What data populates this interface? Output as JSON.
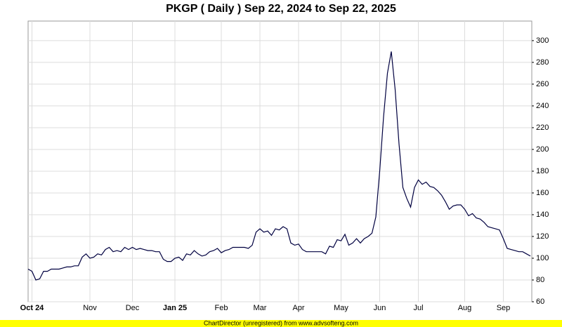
{
  "chart_data": {
    "type": "line",
    "title": "PKGP ( Daily ) Sep 22, 2024 to Sep 22, 2025",
    "footer": "ChartDirector (unregistered) from www.advsofteng.com",
    "categories": [
      null,
      "Oct 24",
      null,
      null,
      null,
      null,
      null,
      null,
      null,
      null,
      null,
      null,
      null,
      null,
      null,
      null,
      "Nov",
      null,
      null,
      null,
      null,
      null,
      null,
      null,
      null,
      null,
      null,
      "Dec",
      null,
      null,
      null,
      null,
      null,
      null,
      null,
      null,
      null,
      null,
      "Jan 25",
      null,
      null,
      null,
      null,
      null,
      null,
      null,
      null,
      null,
      null,
      null,
      "Feb",
      null,
      null,
      null,
      null,
      null,
      null,
      null,
      null,
      null,
      "Mar",
      null,
      null,
      null,
      null,
      null,
      null,
      null,
      null,
      null,
      "Apr",
      null,
      null,
      null,
      null,
      null,
      null,
      null,
      null,
      null,
      null,
      "May",
      null,
      null,
      null,
      null,
      null,
      null,
      null,
      null,
      null,
      "Jun",
      null,
      null,
      null,
      null,
      null,
      null,
      null,
      null,
      null,
      "Jul",
      null,
      null,
      null,
      null,
      null,
      null,
      null,
      null,
      null,
      null,
      null,
      "Aug",
      null,
      null,
      null,
      null,
      null,
      null,
      null,
      null,
      null,
      "Sep",
      null,
      null,
      null,
      null,
      null,
      null,
      null
    ],
    "series": [
      {
        "name": "PKGP",
        "color": "#000040",
        "values": [
          90,
          88,
          80,
          81,
          88,
          88,
          90,
          90,
          90,
          91,
          92,
          92,
          93,
          93,
          101,
          104,
          100,
          101,
          104,
          103,
          108,
          110,
          106,
          107,
          106,
          110,
          108,
          110,
          108,
          109,
          108,
          107,
          107,
          106,
          106,
          99,
          97,
          97,
          100,
          101,
          98,
          104,
          103,
          107,
          104,
          102,
          103,
          106,
          107,
          109,
          105,
          107,
          108,
          110,
          110,
          110,
          110,
          109,
          112,
          124,
          127,
          124,
          125,
          121,
          127,
          126,
          129,
          127,
          114,
          112,
          113,
          108,
          106,
          106,
          106,
          106,
          106,
          104,
          111,
          110,
          117,
          116,
          122,
          112,
          114,
          118,
          114,
          118,
          120,
          123,
          138,
          180,
          230,
          270,
          290,
          255,
          205,
          165,
          155,
          147,
          165,
          172,
          168,
          170,
          166,
          165,
          162,
          158,
          152,
          145,
          148,
          149,
          149,
          145,
          139,
          141,
          137,
          136,
          133,
          129,
          128,
          127,
          126,
          118,
          109,
          108,
          107,
          106,
          106,
          104,
          102
        ]
      }
    ],
    "ylim": [
      60,
      318
    ],
    "yticks": [
      60,
      80,
      100,
      120,
      140,
      160,
      180,
      200,
      220,
      240,
      260,
      280,
      300
    ],
    "grid": true
  }
}
